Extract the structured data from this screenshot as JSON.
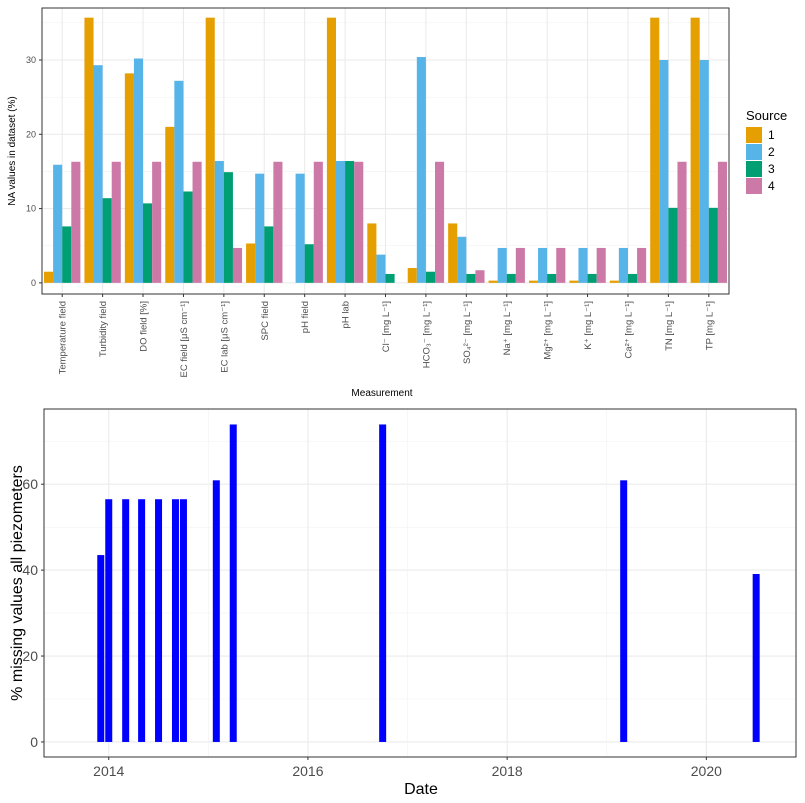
{
  "chart_data": [
    {
      "type": "bar",
      "xlabel": "Measurement",
      "ylabel": "NA values in dataset (%)",
      "ylim": [
        -1.5,
        37
      ],
      "yticks": [
        0,
        10,
        20,
        30
      ],
      "grid": true,
      "legend": {
        "title": "Source",
        "position": "right"
      },
      "categories": [
        "Temperature field",
        "Turbidity field",
        "DO field [%]",
        "EC field [μS cm⁻¹]",
        "EC lab [μS cm⁻¹]",
        "SPC field",
        "pH field",
        "pH lab",
        "Cl⁻ [mg L⁻¹]",
        "HCO₃⁻ [mg L⁻¹]",
        "SO₄²⁻ [mg L⁻¹]",
        "Na⁺ [mg L⁻¹]",
        "Mg²⁺ [mg L⁻¹]",
        "K⁺ [mg L⁻¹]",
        "Ca²⁺ [mg L⁻¹]",
        "TN [mg L⁻¹]",
        "TP [mg L⁻¹]"
      ],
      "series": [
        {
          "name": "1",
          "color": "#E69F00",
          "values": [
            1.5,
            35.7,
            28.2,
            21.0,
            35.7,
            5.3,
            0,
            35.7,
            8.0,
            2.0,
            8.0,
            0.3,
            0.3,
            0.3,
            0.3,
            35.7,
            35.7
          ]
        },
        {
          "name": "2",
          "color": "#56B4E9",
          "values": [
            15.9,
            29.3,
            30.2,
            27.2,
            16.4,
            14.7,
            14.7,
            16.4,
            3.8,
            30.4,
            6.2,
            4.7,
            4.7,
            4.7,
            4.7,
            30.0,
            30.0
          ]
        },
        {
          "name": "3",
          "color": "#009E73",
          "values": [
            7.6,
            11.4,
            10.7,
            12.3,
            14.9,
            7.6,
            5.2,
            16.4,
            1.2,
            1.5,
            1.2,
            1.2,
            1.2,
            1.2,
            1.2,
            10.1,
            10.1
          ]
        },
        {
          "name": "4",
          "color": "#CC79A7",
          "values": [
            16.3,
            16.3,
            16.3,
            16.3,
            4.7,
            16.3,
            16.3,
            16.3,
            0,
            16.3,
            1.7,
            4.7,
            4.7,
            4.7,
            4.7,
            16.3,
            16.3
          ]
        }
      ]
    },
    {
      "type": "bar",
      "xlabel": "Date",
      "ylabel": "% missing values all piezometers",
      "xlim": [
        2013.35,
        2020.9
      ],
      "ylim": [
        -3.5,
        77.5
      ],
      "xticks": [
        2014,
        2016,
        2018,
        2020
      ],
      "yticks": [
        0,
        20,
        40,
        60
      ],
      "grid": true,
      "bar_color": "#0000FF",
      "x": [
        2013.92,
        2014.0,
        2014.17,
        2014.33,
        2014.5,
        2014.67,
        2014.75,
        2015.08,
        2015.25,
        2016.75,
        2019.17,
        2020.5
      ],
      "values": [
        43.5,
        56.5,
        56.5,
        56.5,
        56.5,
        56.5,
        56.5,
        60.9,
        73.9,
        73.9,
        60.9,
        39.1
      ]
    }
  ]
}
